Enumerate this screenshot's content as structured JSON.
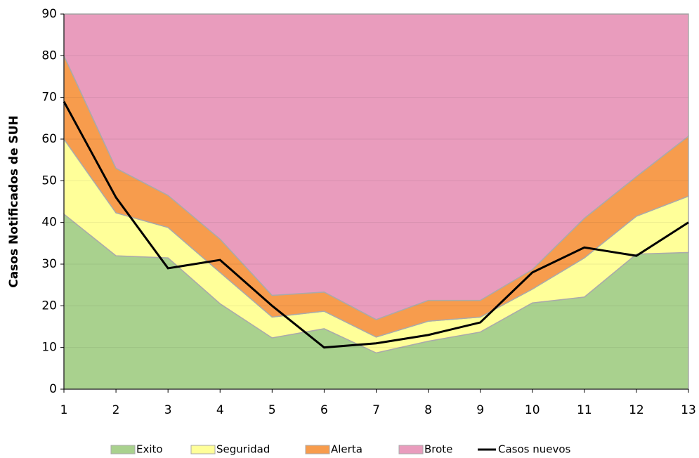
{
  "chart_data": {
    "type": "area",
    "y_label": "Casos Notificados de SUH",
    "x": [
      1,
      2,
      3,
      4,
      5,
      6,
      7,
      8,
      9,
      10,
      11,
      12,
      13
    ],
    "xlim": [
      1,
      13
    ],
    "xticks": [
      1,
      2,
      3,
      4,
      5,
      6,
      7,
      8,
      9,
      10,
      11,
      12,
      13
    ],
    "ylim": [
      0,
      90
    ],
    "yticks": [
      0,
      10,
      20,
      30,
      40,
      50,
      60,
      70,
      80,
      90
    ],
    "grid": true,
    "stacked": true,
    "legend": "bottom",
    "series": [
      {
        "name": "Exito",
        "type": "area",
        "color": "#a9d18e",
        "values": [
          42,
          32,
          31.5,
          20.5,
          12.3,
          14.5,
          8.7,
          11.5,
          13.7,
          20.7,
          22.1,
          32.4,
          32.8
        ]
      },
      {
        "name": "Seguridad",
        "type": "area",
        "color": "#ffff99",
        "values": [
          18,
          10.3,
          7.3,
          7.5,
          5,
          4.2,
          3.8,
          4.8,
          3.6,
          3.3,
          9.4,
          9.1,
          13.5
        ]
      },
      {
        "name": "Alerta",
        "type": "area",
        "color": "#f79c4d",
        "values": [
          20,
          10.7,
          7.7,
          8,
          5.2,
          4.6,
          4.2,
          5,
          4,
          4.7,
          9.5,
          9.5,
          14.4
        ]
      },
      {
        "name": "Brote",
        "type": "area",
        "color": "#e99cbd",
        "values": [
          10,
          37,
          43.5,
          54,
          67.5,
          66.7,
          73.3,
          68.7,
          68.7,
          61.3,
          49,
          39,
          29.3
        ]
      },
      {
        "name": "Casos nuevos",
        "type": "line",
        "color": "#000000",
        "values": [
          69,
          46,
          29,
          31,
          20,
          10,
          11,
          13,
          16,
          28,
          34,
          32,
          40
        ]
      }
    ]
  }
}
